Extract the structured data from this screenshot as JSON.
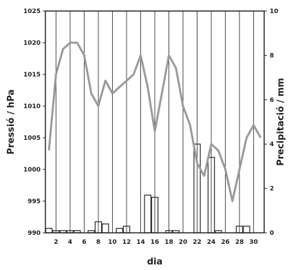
{
  "chart_data": {
    "type": "bar+line",
    "title": "",
    "xlabel": "dia",
    "ylabel_left": "Pressió / hPa",
    "ylabel_right": "Precipitació / mm",
    "x_ticks": [
      "2",
      "4",
      "6",
      "8",
      "10",
      "12",
      "14",
      "16",
      "18",
      "20",
      "22",
      "24",
      "26",
      "28",
      "30"
    ],
    "y_left_ticks": [
      "990",
      "995",
      "1000",
      "1005",
      "1010",
      "1015",
      "1020",
      "1025"
    ],
    "y_right_ticks": [
      "0",
      "2",
      "4",
      "6",
      "8",
      "10"
    ],
    "y_left_range": [
      990,
      1025
    ],
    "y_right_range": [
      0,
      10
    ],
    "x_range": [
      0.5,
      31.5
    ],
    "grid": true,
    "colors": {
      "pressure_line": "#9a9a9a",
      "precip_bar_edge": "#333333",
      "grid": "#444444"
    },
    "series": [
      {
        "type": "line",
        "axis": "left",
        "days": [
          1,
          2,
          3,
          4,
          5,
          6,
          7,
          8,
          9,
          10,
          11,
          12,
          13,
          14,
          15,
          16,
          17,
          18,
          19,
          20,
          21,
          22,
          23,
          24,
          25,
          26,
          27,
          28,
          29,
          30,
          31
        ],
        "values": [
          1003,
          1015,
          1019,
          1020,
          1020,
          1018,
          1012,
          1010,
          1014,
          1012,
          1013,
          1014,
          1015,
          1018,
          1013,
          1006,
          1012,
          1018,
          1016,
          1010,
          1007,
          1001,
          999,
          1004,
          1003,
          1000,
          995,
          1000,
          1005,
          1007,
          1005
        ]
      },
      {
        "type": "bar",
        "axis": "right",
        "days": [
          1,
          2,
          3,
          4,
          5,
          6,
          7,
          8,
          9,
          10,
          11,
          12,
          13,
          14,
          15,
          16,
          17,
          18,
          19,
          20,
          21,
          22,
          23,
          24,
          25,
          26,
          27,
          28,
          29,
          30,
          31
        ],
        "values": [
          0.2,
          0.1,
          0.1,
          0.1,
          0.1,
          0,
          0.1,
          0.5,
          0.4,
          0,
          0.2,
          0.3,
          0,
          0,
          1.7,
          1.6,
          0,
          0.1,
          0.1,
          0,
          0,
          4.0,
          0,
          3.4,
          0.1,
          0,
          0,
          0.3,
          0.3,
          0,
          0
        ]
      }
    ]
  }
}
